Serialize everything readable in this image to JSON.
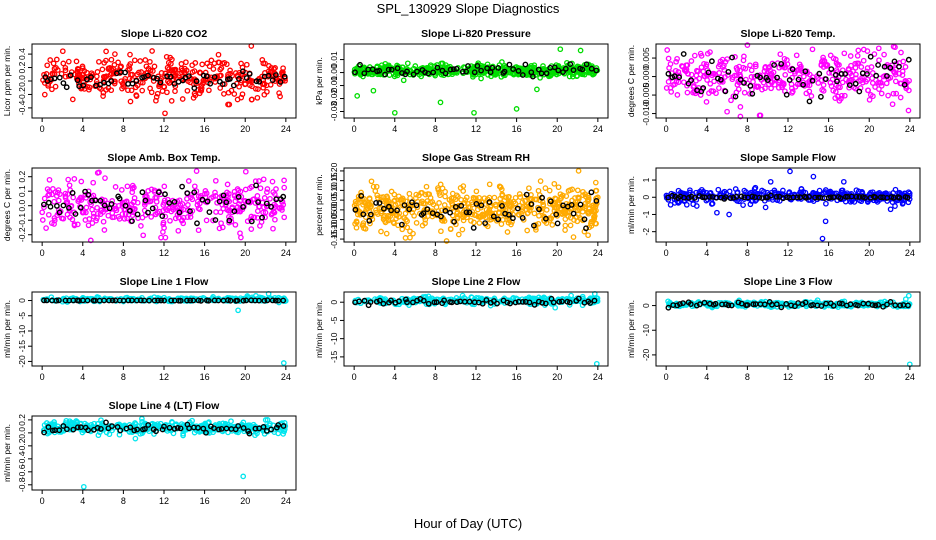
{
  "page": {
    "title": "SPL_130929  Slope Diagnostics",
    "xlabel": "Hour of Day (UTC)"
  },
  "colors": {
    "red": "#ff0000",
    "green": "#00dd00",
    "magenta": "#ff00ff",
    "orange": "#ffaa00",
    "blue": "#0000ff",
    "cyan": "#00e5ee",
    "black": "#000000"
  },
  "chart_data": [
    {
      "type": "scatter",
      "title": "Slope Li-820 CO2",
      "ylabel": "Licor ppm per min.",
      "color": "red",
      "xlim": [
        -1,
        25
      ],
      "ylim": [
        -0.55,
        0.55
      ],
      "xticks": [
        "0",
        "4",
        "8",
        "12",
        "16",
        "20",
        "24"
      ],
      "yticks": [
        {
          "v": -0.4,
          "label": "-0.4"
        },
        {
          "v": -0.2,
          "label": "-0.2"
        },
        {
          "v": 0,
          "label": "0.0"
        },
        {
          "v": 0.2,
          "label": "0.2"
        },
        {
          "v": 0.4,
          "label": "0.4"
        }
      ],
      "cloud": {
        "center": 0.05,
        "spread": 0.17,
        "n": 380
      },
      "black": {
        "center": 0.02,
        "spread": 0.07,
        "n": 60
      },
      "outliers": [
        [
          12.1,
          -0.48
        ],
        [
          18.3,
          -0.35
        ],
        [
          20.6,
          0.52
        ],
        [
          21.2,
          -0.25
        ],
        [
          6.3,
          0.44
        ]
      ]
    },
    {
      "type": "scatter",
      "title": "Slope Li-820 Pressure",
      "ylabel": "kPa per min.",
      "color": "green",
      "xlim": [
        -1,
        25
      ],
      "ylim": [
        -0.035,
        0.022
      ],
      "xticks": [
        "0",
        "4",
        "8",
        "12",
        "16",
        "20",
        "24"
      ],
      "yticks": [
        {
          "v": -0.03,
          "label": "-0.03"
        },
        {
          "v": -0.02,
          "label": "-0.02"
        },
        {
          "v": -0.01,
          "label": "-0.01"
        },
        {
          "v": 0,
          "label": "0.00"
        },
        {
          "v": 0.01,
          "label": "0.01"
        }
      ],
      "cloud": {
        "center": 0.0015,
        "spread": 0.0025,
        "n": 520
      },
      "black": {
        "center": 0.0015,
        "spread": 0.0025,
        "n": 60
      },
      "outliers": [
        [
          4.0,
          -0.031
        ],
        [
          8.5,
          -0.023
        ],
        [
          11.8,
          -0.031
        ],
        [
          16.0,
          -0.028
        ],
        [
          18.0,
          -0.013
        ],
        [
          20.3,
          0.018
        ],
        [
          22.3,
          0.017
        ],
        [
          1.9,
          -0.014
        ],
        [
          0.3,
          -0.018
        ]
      ]
    },
    {
      "type": "scatter",
      "title": "Slope Li-820 Temp.",
      "ylabel": "degrees C per min.",
      "color": "magenta",
      "xlim": [
        -1,
        25
      ],
      "ylim": [
        -0.0112,
        0.0088
      ],
      "xticks": [
        "0",
        "4",
        "8",
        "12",
        "16",
        "20",
        "24"
      ],
      "yticks": [
        {
          "v": -0.01,
          "label": "-0.010"
        },
        {
          "v": -0.005,
          "label": "-0.005"
        },
        {
          "v": 0,
          "label": "0.000"
        },
        {
          "v": 0.005,
          "label": "0.005"
        }
      ],
      "cloud": {
        "center": 0.0,
        "spread": 0.0038,
        "n": 380
      },
      "black": {
        "center": 0.0,
        "spread": 0.0035,
        "n": 60
      },
      "outliers": [
        [
          8.0,
          0.0085
        ],
        [
          6.0,
          -0.0095
        ],
        [
          9.2,
          -0.0105
        ]
      ]
    },
    {
      "type": "scatter",
      "title": "Slope Amb. Box Temp.",
      "ylabel": "degrees C per min.",
      "color": "magenta",
      "xlim": [
        -1,
        25
      ],
      "ylim": [
        -0.25,
        0.26
      ],
      "xticks": [
        "0",
        "4",
        "8",
        "12",
        "16",
        "20",
        "24"
      ],
      "yticks": [
        {
          "v": -0.2,
          "label": "-0.2"
        },
        {
          "v": -0.1,
          "label": "-0.1"
        },
        {
          "v": 0,
          "label": "0.0"
        },
        {
          "v": 0.1,
          "label": "0.1"
        },
        {
          "v": 0.2,
          "label": "0.2"
        }
      ],
      "cloud": {
        "center": 0.0,
        "spread": 0.09,
        "n": 380
      },
      "black": {
        "center": 0.0,
        "spread": 0.07,
        "n": 60
      },
      "outliers": [
        [
          5.6,
          0.23
        ],
        [
          11.7,
          -0.22
        ]
      ]
    },
    {
      "type": "scatter",
      "title": "Slope Gas Stream RH",
      "ylabel": "percent per min.",
      "color": "orange",
      "xlim": [
        -1,
        25
      ],
      "ylim": [
        -0.165,
        0.215
      ],
      "xticks": [
        "0",
        "4",
        "8",
        "12",
        "16",
        "20",
        "24"
      ],
      "yticks": [
        {
          "v": -0.15,
          "label": "-0.15"
        },
        {
          "v": -0.1,
          "label": "-0.10"
        },
        {
          "v": -0.05,
          "label": "-0.05"
        },
        {
          "v": 0,
          "label": "0.00"
        },
        {
          "v": 0.05,
          "label": "0.05"
        },
        {
          "v": 0.1,
          "label": "0.10"
        },
        {
          "v": 0.15,
          "label": "0.15"
        },
        {
          "v": 0.2,
          "label": "0.20"
        }
      ],
      "cloud": {
        "center": 0.01,
        "spread": 0.06,
        "n": 560
      },
      "black": {
        "center": 0.0,
        "spread": 0.05,
        "n": 60
      },
      "outliers": [
        [
          22.1,
          0.2
        ],
        [
          23.8,
          0.14
        ],
        [
          21.6,
          -0.14
        ],
        [
          9.1,
          -0.16
        ]
      ]
    },
    {
      "type": "scatter",
      "title": "Slope Sample Flow",
      "ylabel": "ml/min per min.",
      "color": "blue",
      "xlim": [
        -1,
        25
      ],
      "ylim": [
        -2.6,
        1.7
      ],
      "xticks": [
        "0",
        "4",
        "8",
        "12",
        "16",
        "20",
        "24"
      ],
      "yticks": [
        {
          "v": -2,
          "label": "-2"
        },
        {
          "v": -1,
          "label": "-1"
        },
        {
          "v": 0,
          "label": "0"
        },
        {
          "v": 1,
          "label": "1"
        }
      ],
      "cloud": {
        "center": 0.05,
        "spread": 0.22,
        "n": 340
      },
      "black": {
        "center": 0.0,
        "spread": 0.05,
        "n": 70
      },
      "outliers": [
        [
          15.4,
          -2.4
        ],
        [
          12.2,
          1.5
        ],
        [
          14.5,
          1.2
        ],
        [
          5.0,
          -0.9
        ],
        [
          10.3,
          0.9
        ],
        [
          15.7,
          -1.4
        ],
        [
          17.5,
          0.9
        ],
        [
          6.2,
          -1.0
        ],
        [
          22.1,
          -0.7
        ]
      ]
    },
    {
      "type": "scatter",
      "title": "Slope Line 1 Flow",
      "ylabel": "ml/min per min.",
      "color": "cyan",
      "xlim": [
        -1,
        25
      ],
      "ylim": [
        -21.5,
        2.8
      ],
      "xticks": [
        "0",
        "4",
        "8",
        "12",
        "16",
        "20",
        "24"
      ],
      "yticks": [
        {
          "v": -20,
          "label": "-20"
        },
        {
          "v": -15,
          "label": "-15"
        },
        {
          "v": -10,
          "label": "-10"
        },
        {
          "v": -5,
          "label": "-5"
        },
        {
          "v": 0,
          "label": "0"
        }
      ],
      "cloud": {
        "center": 0.3,
        "spread": 0.4,
        "n": 260
      },
      "black": {
        "center": 0.0,
        "spread": 0.05,
        "n": 60
      },
      "outliers": [
        [
          23.8,
          -20.5
        ],
        [
          19.3,
          -3.2
        ],
        [
          22.3,
          2.2
        ],
        [
          20.2,
          1.5
        ]
      ]
    },
    {
      "type": "scatter",
      "title": "Slope Line 2 Flow",
      "ylabel": "ml/min per min.",
      "color": "cyan",
      "xlim": [
        -1,
        25
      ],
      "ylim": [
        -17.5,
        2.8
      ],
      "xticks": [
        "0",
        "4",
        "8",
        "12",
        "16",
        "20",
        "24"
      ],
      "yticks": [
        {
          "v": -15,
          "label": "-15"
        },
        {
          "v": -10,
          "label": "-10"
        },
        {
          "v": -5,
          "label": "-5"
        },
        {
          "v": 0,
          "label": "0"
        }
      ],
      "cloud": {
        "center": 0.4,
        "spread": 0.55,
        "n": 320
      },
      "black": {
        "center": 0.1,
        "spread": 0.45,
        "n": 60
      },
      "outliers": [
        [
          23.9,
          -16.9
        ],
        [
          19.8,
          -1.5
        ],
        [
          23.7,
          2.3
        ]
      ]
    },
    {
      "type": "scatter",
      "title": "Slope Line 3 Flow",
      "ylabel": "ml/min per min.",
      "color": "cyan",
      "xlim": [
        -1,
        25
      ],
      "ylim": [
        -24.5,
        5.5
      ],
      "xticks": [
        "0",
        "4",
        "8",
        "12",
        "16",
        "20",
        "24"
      ],
      "yticks": [
        {
          "v": -20,
          "label": "-20"
        },
        {
          "v": -10,
          "label": "-10"
        },
        {
          "v": 0,
          "label": "0"
        }
      ],
      "cloud": {
        "center": 0.5,
        "spread": 0.6,
        "n": 300
      },
      "black": {
        "center": 0.4,
        "spread": 0.6,
        "n": 60
      },
      "outliers": [
        [
          24.0,
          -23.8
        ],
        [
          23.9,
          4.0
        ],
        [
          23.6,
          2.6
        ]
      ]
    },
    {
      "type": "scatter",
      "title": "Slope Line 4 (LT) Flow",
      "ylabel": "ml/min per min.",
      "color": "cyan",
      "xlim": [
        -1,
        25
      ],
      "ylim": [
        -0.88,
        0.26
      ],
      "xticks": [
        "0",
        "4",
        "8",
        "12",
        "16",
        "20",
        "24"
      ],
      "yticks": [
        {
          "v": -0.8,
          "label": "-0.8"
        },
        {
          "v": -0.6,
          "label": "-0.6"
        },
        {
          "v": -0.4,
          "label": "-0.4"
        },
        {
          "v": -0.2,
          "label": "-0.2"
        },
        {
          "v": 0,
          "label": "0.0"
        },
        {
          "v": 0.2,
          "label": "0.2"
        }
      ],
      "cloud": {
        "center": 0.08,
        "spread": 0.05,
        "n": 380
      },
      "black": {
        "center": 0.07,
        "spread": 0.035,
        "n": 60
      },
      "outliers": [
        [
          4.1,
          -0.83
        ],
        [
          19.8,
          -0.67
        ],
        [
          22.2,
          0.2
        ],
        [
          18.6,
          0.18
        ]
      ]
    }
  ]
}
